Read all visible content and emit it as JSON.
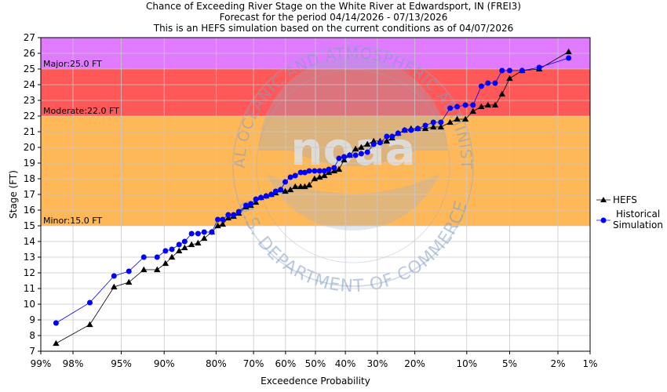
{
  "titles": [
    "Chance of Exceeding River Stage  on the White River at Edwardsport, IN (FREI3)",
    "Forecast for the period 04/14/2026 - 07/13/2026",
    "This is an HEFS simulation based on the current conditions as of 04/07/2026"
  ],
  "watermark": {
    "logo_text": "noaa",
    "ring_text_top": "NATIONAL OCEANIC AND ATMOSPHERIC ADMINISTRATION",
    "ring_text_bottom": "U.S. DEPARTMENT OF COMMERCE"
  },
  "chart_data": {
    "type": "line",
    "title": "Chance of Exceeding River Stage  on the White River at Edwardsport, IN (FREI3)",
    "xlabel": "Exceedence Probability",
    "ylabel": "Stage (FT)",
    "ylim": [
      7,
      27
    ],
    "x_scale": "normal-probability (reversed, 99% to 1%)",
    "x_ticks": [
      "99%",
      "98%",
      "95%",
      "90%",
      "80%",
      "70%",
      "60%",
      "50%",
      "40%",
      "30%",
      "20%",
      "10%",
      "5%",
      "2%",
      "1%"
    ],
    "x_tick_values": [
      99,
      98,
      95,
      90,
      80,
      70,
      60,
      50,
      40,
      30,
      20,
      10,
      5,
      2,
      1
    ],
    "y_ticks": [
      7,
      8,
      9,
      10,
      11,
      12,
      13,
      14,
      15,
      16,
      17,
      18,
      19,
      20,
      21,
      22,
      23,
      24,
      25,
      26,
      27
    ],
    "grid": true,
    "legend_position": "right",
    "flood_categories": [
      {
        "label": "Minor:15.0 FT",
        "from": 15.0,
        "to": 22.0,
        "color": "#ffb857"
      },
      {
        "label": "Moderate:22.0 FT",
        "from": 22.0,
        "to": 25.0,
        "color": "#ff5858"
      },
      {
        "label": "Major:25.0 FT",
        "from": 25.0,
        "to": 27.0,
        "color": "#e07aff"
      }
    ],
    "series": [
      {
        "name": "HEFS",
        "color": "#000000",
        "line_color": "#000000",
        "marker": "triangle",
        "points": [
          [
            98.6,
            7.5
          ],
          [
            97.2,
            8.7
          ],
          [
            95.6,
            11.1
          ],
          [
            94.3,
            11.4
          ],
          [
            92.7,
            12.2
          ],
          [
            91.0,
            12.2
          ],
          [
            89.8,
            12.6
          ],
          [
            88.8,
            13.0
          ],
          [
            87.6,
            13.4
          ],
          [
            86.6,
            13.6
          ],
          [
            85.3,
            13.8
          ],
          [
            84.0,
            13.9
          ],
          [
            82.7,
            14.2
          ],
          [
            81.0,
            14.6
          ],
          [
            79.6,
            15.0
          ],
          [
            78.4,
            15.1
          ],
          [
            77.0,
            15.5
          ],
          [
            75.6,
            15.6
          ],
          [
            74.2,
            15.8
          ],
          [
            72.2,
            16.2
          ],
          [
            70.8,
            16.3
          ],
          [
            69.3,
            16.5
          ],
          [
            67.8,
            16.8
          ],
          [
            66.2,
            16.9
          ],
          [
            64.6,
            17.0
          ],
          [
            63.2,
            17.1
          ],
          [
            61.6,
            17.3
          ],
          [
            60.1,
            17.2
          ],
          [
            58.4,
            17.3
          ],
          [
            56.8,
            17.5
          ],
          [
            55.0,
            17.5
          ],
          [
            53.6,
            17.5
          ],
          [
            52.1,
            17.6
          ],
          [
            50.3,
            18.0
          ],
          [
            48.6,
            18.1
          ],
          [
            47.0,
            18.2
          ],
          [
            45.5,
            18.4
          ],
          [
            43.7,
            18.5
          ],
          [
            42.1,
            18.6
          ],
          [
            40.4,
            19.2
          ],
          [
            38.6,
            19.5
          ],
          [
            36.7,
            19.9
          ],
          [
            34.9,
            20.0
          ],
          [
            33.0,
            20.2
          ],
          [
            31.1,
            20.4
          ],
          [
            29.2,
            20.4
          ],
          [
            27.3,
            20.4
          ],
          [
            25.8,
            20.6
          ],
          [
            24.2,
            20.9
          ],
          [
            22.5,
            21.1
          ],
          [
            20.9,
            21.2
          ],
          [
            19.3,
            21.2
          ],
          [
            17.6,
            21.2
          ],
          [
            15.9,
            21.3
          ],
          [
            14.4,
            21.3
          ],
          [
            12.7,
            21.6
          ],
          [
            11.5,
            21.8
          ],
          [
            10.2,
            21.8
          ],
          [
            9.1,
            22.3
          ],
          [
            8.0,
            22.6
          ],
          [
            7.2,
            22.7
          ],
          [
            6.4,
            22.7
          ],
          [
            5.7,
            23.4
          ],
          [
            5.0,
            24.4
          ],
          [
            4.0,
            24.9
          ],
          [
            2.9,
            25.0
          ],
          [
            1.6,
            26.1
          ]
        ]
      },
      {
        "name": "Historical Simulation",
        "color": "#0000ff",
        "line_color": "#0000ff",
        "marker": "circle",
        "points": [
          [
            98.6,
            8.8
          ],
          [
            97.2,
            10.1
          ],
          [
            95.6,
            11.8
          ],
          [
            94.3,
            12.1
          ],
          [
            92.7,
            13.0
          ],
          [
            91.0,
            13.0
          ],
          [
            89.8,
            13.4
          ],
          [
            88.8,
            13.5
          ],
          [
            87.6,
            13.8
          ],
          [
            86.6,
            14.0
          ],
          [
            85.3,
            14.5
          ],
          [
            84.0,
            14.5
          ],
          [
            82.7,
            14.6
          ],
          [
            81.0,
            14.6
          ],
          [
            79.6,
            15.4
          ],
          [
            78.4,
            15.4
          ],
          [
            77.0,
            15.7
          ],
          [
            75.6,
            15.7
          ],
          [
            74.2,
            15.9
          ],
          [
            72.2,
            16.3
          ],
          [
            70.8,
            16.4
          ],
          [
            69.3,
            16.7
          ],
          [
            67.8,
            16.8
          ],
          [
            66.2,
            16.9
          ],
          [
            64.6,
            17.0
          ],
          [
            63.2,
            17.2
          ],
          [
            61.6,
            17.3
          ],
          [
            60.1,
            17.8
          ],
          [
            58.4,
            18.1
          ],
          [
            56.8,
            18.2
          ],
          [
            55.0,
            18.4
          ],
          [
            53.6,
            18.4
          ],
          [
            52.1,
            18.5
          ],
          [
            50.3,
            18.5
          ],
          [
            48.6,
            18.5
          ],
          [
            47.0,
            18.5
          ],
          [
            45.5,
            18.6
          ],
          [
            43.7,
            18.7
          ],
          [
            42.1,
            19.3
          ],
          [
            40.4,
            19.4
          ],
          [
            38.6,
            19.5
          ],
          [
            36.7,
            19.5
          ],
          [
            34.9,
            19.6
          ],
          [
            33.0,
            19.7
          ],
          [
            31.1,
            20.2
          ],
          [
            29.2,
            20.3
          ],
          [
            27.3,
            20.7
          ],
          [
            25.8,
            20.7
          ],
          [
            24.2,
            20.9
          ],
          [
            22.5,
            21.1
          ],
          [
            20.9,
            21.1
          ],
          [
            19.3,
            21.2
          ],
          [
            17.6,
            21.4
          ],
          [
            15.9,
            21.6
          ],
          [
            14.4,
            21.6
          ],
          [
            12.7,
            22.5
          ],
          [
            11.5,
            22.6
          ],
          [
            10.2,
            22.7
          ],
          [
            9.1,
            22.7
          ],
          [
            8.0,
            23.9
          ],
          [
            7.2,
            24.1
          ],
          [
            6.4,
            24.1
          ],
          [
            5.7,
            24.9
          ],
          [
            5.0,
            24.9
          ],
          [
            4.0,
            24.9
          ],
          [
            2.9,
            25.1
          ],
          [
            1.6,
            25.7
          ]
        ]
      }
    ]
  }
}
